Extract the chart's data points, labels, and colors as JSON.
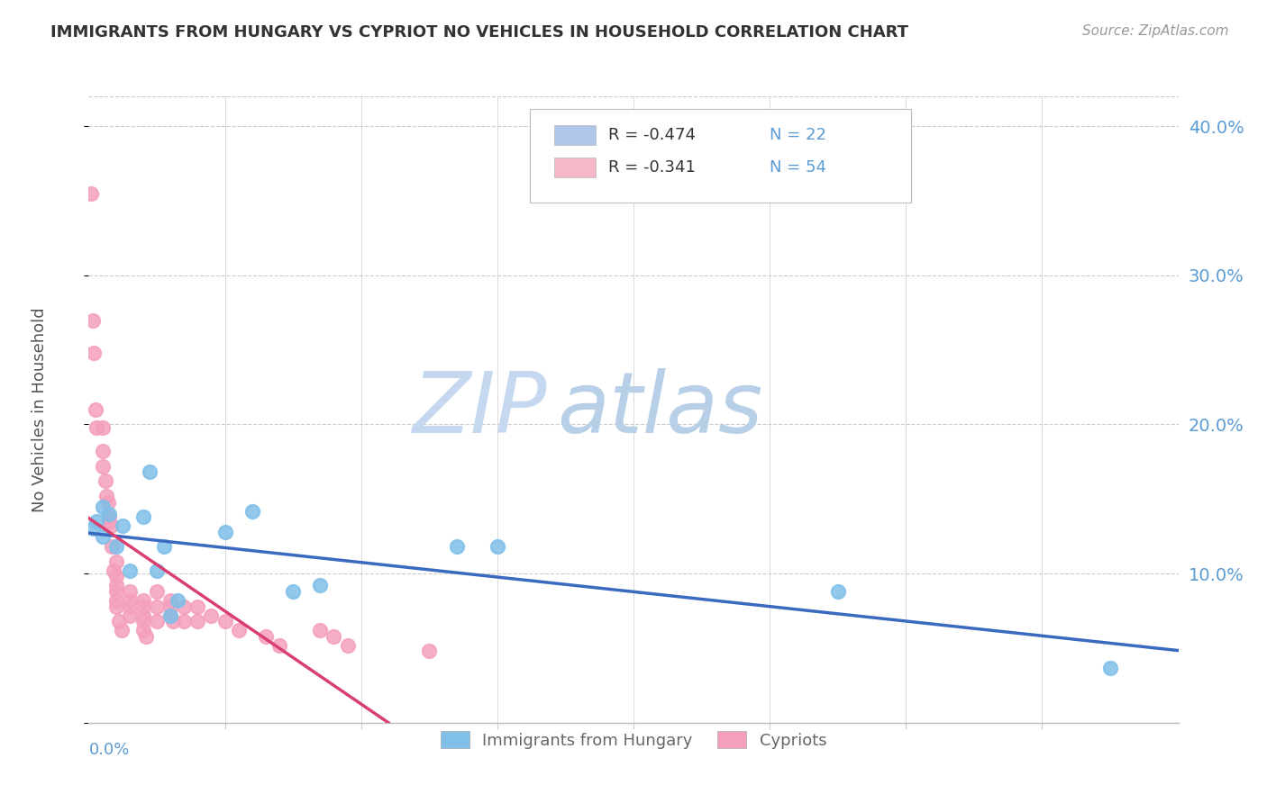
{
  "title": "IMMIGRANTS FROM HUNGARY VS CYPRIOT NO VEHICLES IN HOUSEHOLD CORRELATION CHART",
  "source": "Source: ZipAtlas.com",
  "ylabel": "No Vehicles in Household",
  "legend_items": [
    {
      "label_r": "R = -0.474",
      "label_n": "N = 22",
      "color": "#aec6e8"
    },
    {
      "label_r": "R = -0.341",
      "label_n": "N = 54",
      "color": "#f4b8c8"
    }
  ],
  "legend_bottom": [
    "Immigrants from Hungary",
    "Cypriots"
  ],
  "xlim": [
    0.0,
    0.08
  ],
  "ylim": [
    0.0,
    0.42
  ],
  "yticks": [
    0.0,
    0.1,
    0.2,
    0.3,
    0.4
  ],
  "xtick_positions": [
    0.01,
    0.02,
    0.03,
    0.04,
    0.05,
    0.06,
    0.07
  ],
  "watermark_zip": "ZIP",
  "watermark_atlas": "atlas",
  "watermark_color_zip": "#c5d8f0",
  "watermark_color_atlas": "#b8cfe8",
  "background_color": "#ffffff",
  "hungary_color": "#7fbfe8",
  "cypriot_color": "#f4a0bc",
  "hungary_line_color": "#3a6abf",
  "cypriot_line_color": "#d94070",
  "scatter_alpha": 0.85,
  "scatter_size": 120,
  "scatter_lw": 1.5,
  "hungary_points_x": [
    0.0003,
    0.0006,
    0.001,
    0.001,
    0.0015,
    0.002,
    0.0025,
    0.003,
    0.004,
    0.0045,
    0.005,
    0.0055,
    0.006,
    0.0065,
    0.01,
    0.012,
    0.015,
    0.017,
    0.027,
    0.03,
    0.055,
    0.075
  ],
  "hungary_points_y": [
    0.13,
    0.135,
    0.125,
    0.145,
    0.14,
    0.118,
    0.132,
    0.102,
    0.138,
    0.168,
    0.102,
    0.118,
    0.072,
    0.082,
    0.128,
    0.142,
    0.088,
    0.092,
    0.118,
    0.118,
    0.088,
    0.037
  ],
  "cypriot_points_x": [
    0.0002,
    0.0003,
    0.0004,
    0.0005,
    0.0006,
    0.001,
    0.001,
    0.001,
    0.0012,
    0.0013,
    0.0014,
    0.0015,
    0.0015,
    0.0016,
    0.0017,
    0.0018,
    0.002,
    0.002,
    0.002,
    0.002,
    0.002,
    0.002,
    0.0022,
    0.0024,
    0.003,
    0.003,
    0.003,
    0.003,
    0.004,
    0.004,
    0.004,
    0.004,
    0.004,
    0.0042,
    0.005,
    0.005,
    0.005,
    0.006,
    0.006,
    0.006,
    0.0062,
    0.007,
    0.007,
    0.008,
    0.008,
    0.009,
    0.01,
    0.011,
    0.013,
    0.014,
    0.017,
    0.018,
    0.019,
    0.025
  ],
  "cypriot_points_y": [
    0.355,
    0.27,
    0.248,
    0.21,
    0.198,
    0.198,
    0.182,
    0.172,
    0.162,
    0.152,
    0.148,
    0.138,
    0.135,
    0.132,
    0.118,
    0.102,
    0.108,
    0.098,
    0.092,
    0.088,
    0.082,
    0.078,
    0.068,
    0.062,
    0.088,
    0.082,
    0.078,
    0.072,
    0.082,
    0.078,
    0.072,
    0.068,
    0.062,
    0.058,
    0.088,
    0.078,
    0.068,
    0.082,
    0.078,
    0.072,
    0.068,
    0.078,
    0.068,
    0.078,
    0.068,
    0.072,
    0.068,
    0.062,
    0.058,
    0.052,
    0.062,
    0.058,
    0.052,
    0.048
  ]
}
